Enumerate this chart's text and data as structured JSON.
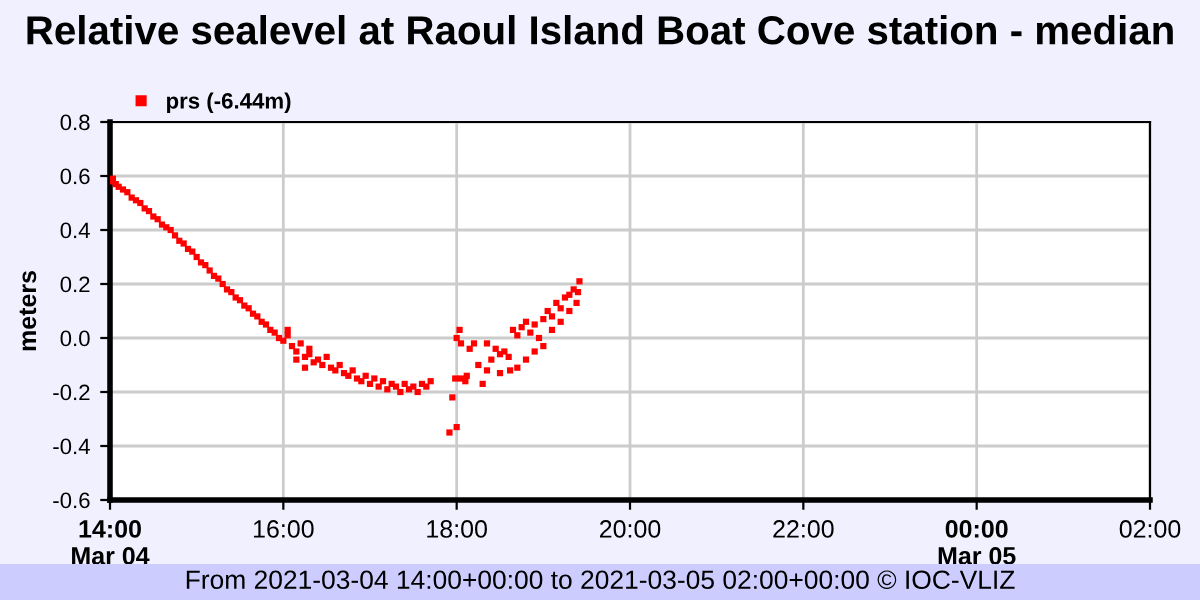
{
  "chart_data": {
    "type": "scatter",
    "title": "Relative sealevel at Raoul Island Boat Cove station - median",
    "ylabel": "meters",
    "legend": "top left",
    "grid": true,
    "marker": "square",
    "xlim": [
      "2021-03-04T14:00",
      "2021-03-05T02:00"
    ],
    "xticks": [
      {
        "value": "2021-03-04T14:00",
        "label": "14:00\nMar 04"
      },
      {
        "value": "2021-03-04T16:00",
        "label": "16:00"
      },
      {
        "value": "2021-03-04T18:00",
        "label": "18:00"
      },
      {
        "value": "2021-03-04T20:00",
        "label": "20:00"
      },
      {
        "value": "2021-03-04T22:00",
        "label": "22:00"
      },
      {
        "value": "2021-03-05T00:00",
        "label": "00:00\nMar 05"
      },
      {
        "value": "2021-03-05T02:00",
        "label": "02:00"
      }
    ],
    "ylim": [
      -0.6,
      0.8
    ],
    "yticks": [
      -0.6,
      -0.4,
      -0.2,
      {
        "value": 0,
        "label": "0.0"
      },
      0.2,
      0.4,
      0.6,
      0.8
    ],
    "annotations": [
      "From 2021-03-04 14:00+00:00 to 2021-03-05 02:00+00:00 © IOC-VLIZ"
    ],
    "series": [
      {
        "name": "prs (-6.44m)",
        "color": "#ff0000",
        "x": [
          "2021-03-04T14:00",
          "2021-03-04T14:02",
          "2021-03-04T14:04",
          "2021-03-04T14:06",
          "2021-03-04T14:09",
          "2021-03-04T14:12",
          "2021-03-04T14:15",
          "2021-03-04T14:18",
          "2021-03-04T14:21",
          "2021-03-04T14:24",
          "2021-03-04T14:27",
          "2021-03-04T14:30",
          "2021-03-04T14:33",
          "2021-03-04T14:36",
          "2021-03-04T14:39",
          "2021-03-04T14:42",
          "2021-03-04T14:45",
          "2021-03-04T14:48",
          "2021-03-04T14:51",
          "2021-03-04T14:54",
          "2021-03-04T14:57",
          "2021-03-04T15:00",
          "2021-03-04T15:03",
          "2021-03-04T15:06",
          "2021-03-04T15:09",
          "2021-03-04T15:12",
          "2021-03-04T15:15",
          "2021-03-04T15:18",
          "2021-03-04T15:21",
          "2021-03-04T15:24",
          "2021-03-04T15:27",
          "2021-03-04T15:30",
          "2021-03-04T15:33",
          "2021-03-04T15:36",
          "2021-03-04T15:39",
          "2021-03-04T15:42",
          "2021-03-04T15:45",
          "2021-03-04T15:48",
          "2021-03-04T15:51",
          "2021-03-04T15:54",
          "2021-03-04T15:57",
          "2021-03-04T16:00",
          "2021-03-04T16:03",
          "2021-03-04T16:06",
          "2021-03-04T16:09",
          "2021-03-04T16:12",
          "2021-03-04T16:15",
          "2021-03-04T16:18",
          "2021-03-04T16:21",
          "2021-03-04T16:24",
          "2021-03-04T16:27",
          "2021-03-04T16:30",
          "2021-03-04T16:33",
          "2021-03-04T16:36",
          "2021-03-04T16:39",
          "2021-03-04T16:42",
          "2021-03-04T16:45",
          "2021-03-04T16:48",
          "2021-03-04T16:51",
          "2021-03-04T16:54",
          "2021-03-04T16:57",
          "2021-03-04T17:00",
          "2021-03-04T17:03",
          "2021-03-04T17:06",
          "2021-03-04T17:09",
          "2021-03-04T17:12",
          "2021-03-04T17:15",
          "2021-03-04T17:18",
          "2021-03-04T17:21",
          "2021-03-04T17:24",
          "2021-03-04T17:27",
          "2021-03-04T17:30",
          "2021-03-04T17:33",
          "2021-03-04T17:36",
          "2021-03-04T17:39",
          "2021-03-04T17:42",
          "2021-03-04T16:03",
          "2021-03-04T16:09",
          "2021-03-04T16:15",
          "2021-03-04T16:18",
          "2021-03-04T17:55",
          "2021-03-04T17:57",
          "2021-03-04T18:00",
          "2021-03-04T18:00",
          "2021-03-04T18:02",
          "2021-03-04T18:03",
          "2021-03-04T17:59",
          "2021-03-04T18:03",
          "2021-03-04T18:06",
          "2021-03-04T18:07",
          "2021-03-04T18:09",
          "2021-03-04T18:12",
          "2021-03-04T18:15",
          "2021-03-04T18:18",
          "2021-03-04T18:21",
          "2021-03-04T18:24",
          "2021-03-04T18:27",
          "2021-03-04T18:30",
          "2021-03-04T18:33",
          "2021-03-04T18:36",
          "2021-03-04T18:37",
          "2021-03-04T18:39",
          "2021-03-04T18:42",
          "2021-03-04T18:45",
          "2021-03-04T18:48",
          "2021-03-04T18:51",
          "2021-03-04T18:54",
          "2021-03-04T18:57",
          "2021-03-04T19:00",
          "2021-03-04T19:03",
          "2021-03-04T19:06",
          "2021-03-04T19:09",
          "2021-03-04T19:12",
          "2021-03-04T19:15",
          "2021-03-04T19:18",
          "2021-03-04T19:21",
          "2021-03-04T19:24",
          "2021-03-04T19:25",
          "2021-03-04T19:23",
          "2021-03-04T19:18",
          "2021-03-04T19:12",
          "2021-03-04T19:06",
          "2021-03-04T19:00",
          "2021-03-04T18:54",
          "2021-03-04T18:48",
          "2021-03-04T18:42",
          "2021-03-04T18:30",
          "2021-03-04T18:21"
        ],
        "values": [
          0.58,
          0.59,
          0.57,
          0.56,
          0.55,
          0.54,
          0.52,
          0.51,
          0.5,
          0.48,
          0.47,
          0.45,
          0.44,
          0.42,
          0.41,
          0.4,
          0.38,
          0.36,
          0.35,
          0.33,
          0.32,
          0.3,
          0.28,
          0.27,
          0.25,
          0.23,
          0.22,
          0.2,
          0.18,
          0.17,
          0.15,
          0.14,
          0.12,
          0.11,
          0.09,
          0.08,
          0.06,
          0.05,
          0.03,
          0.02,
          0.0,
          -0.01,
          0.01,
          -0.03,
          -0.05,
          -0.02,
          -0.07,
          -0.06,
          -0.09,
          -0.08,
          -0.1,
          -0.07,
          -0.11,
          -0.12,
          -0.1,
          -0.13,
          -0.14,
          -0.12,
          -0.15,
          -0.16,
          -0.14,
          -0.17,
          -0.15,
          -0.18,
          -0.16,
          -0.19,
          -0.17,
          -0.18,
          -0.2,
          -0.17,
          -0.19,
          -0.18,
          -0.2,
          -0.17,
          -0.18,
          -0.16,
          0.03,
          -0.08,
          -0.11,
          -0.04,
          -0.35,
          -0.22,
          -0.33,
          0.0,
          0.03,
          -0.02,
          -0.15,
          -0.15,
          -0.16,
          -0.14,
          -0.04,
          -0.02,
          -0.1,
          -0.17,
          -0.02,
          -0.08,
          -0.04,
          -0.06,
          -0.05,
          -0.07,
          -0.12,
          0.03,
          0.01,
          0.04,
          0.06,
          0.02,
          0.05,
          0.0,
          0.07,
          0.1,
          0.08,
          0.13,
          0.11,
          0.15,
          0.16,
          0.18,
          0.17,
          0.21,
          0.13,
          0.1,
          0.06,
          0.03,
          -0.03,
          -0.05,
          -0.08,
          -0.11,
          -0.13,
          -0.12
        ]
      }
    ]
  }
}
